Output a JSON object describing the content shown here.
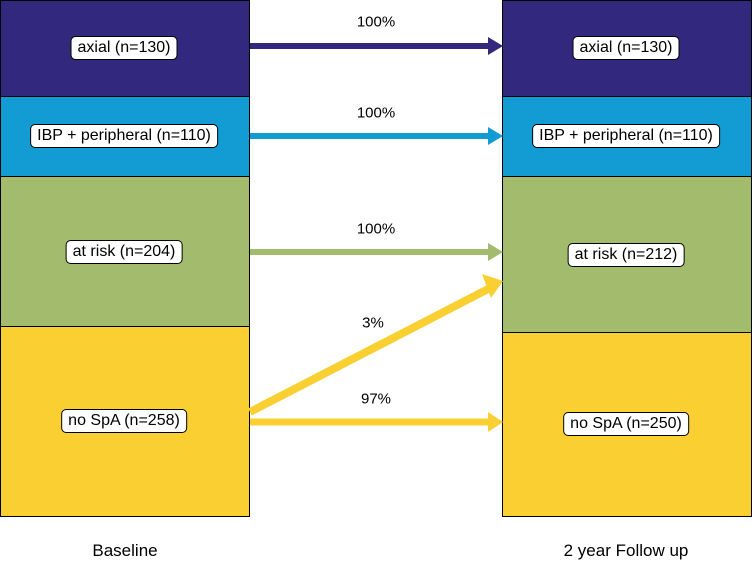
{
  "colors": {
    "axial": "#32297f",
    "ibp": "#139bd4",
    "at_risk": "#a2bb6c",
    "no_spa": "#f9cf32"
  },
  "baseline": {
    "title": "Baseline",
    "axial": "axial (n=130)",
    "ibp": "IBP + peripheral (n=110)",
    "at_risk": "at risk (n=204)",
    "no_spa": "no SpA (n=258)"
  },
  "followup": {
    "title": "2 year Follow up",
    "axial": "axial (n=130)",
    "ibp": "IBP + peripheral (n=110)",
    "at_risk": "at risk (n=212)",
    "no_spa": "no SpA (n=250)"
  },
  "transitions": {
    "axial_to_axial": "100%",
    "ibp_to_ibp": "100%",
    "at_risk_to_at_risk": "100%",
    "no_spa_to_at_risk": "3%",
    "no_spa_to_no_spa": "97%"
  }
}
